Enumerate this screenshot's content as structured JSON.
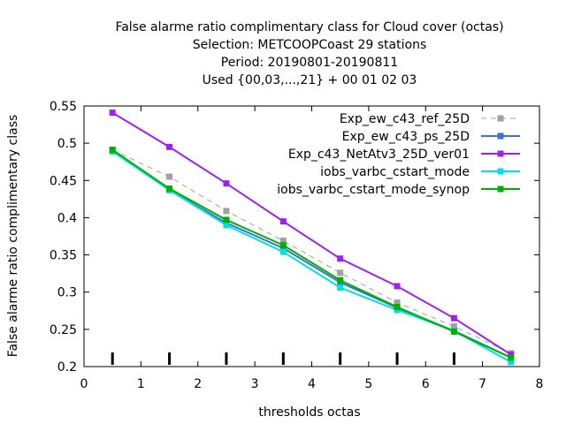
{
  "chart_data": {
    "type": "line",
    "title_lines": [
      "False alarme ratio complimentary class  for Cloud cover (octas)",
      "Selection: METCOOPCoast     29 stations",
      "Period: 20190801-20190811",
      "Used {00,03,...,21} + 00 01 02 03"
    ],
    "xlabel": "thresholds octas",
    "ylabel": "False alarme ratio complimentary class",
    "xlim": [
      0,
      8
    ],
    "ylim": [
      0.2,
      0.55
    ],
    "xticks": [
      "0",
      "1",
      "2",
      "3",
      "4",
      "5",
      "6",
      "7",
      "8"
    ],
    "yticks": [
      "0.2",
      "0.25",
      "0.3",
      "0.35",
      "0.4",
      "0.45",
      "0.5",
      "0.55"
    ],
    "grid": false,
    "legend_position": "top-right",
    "x": [
      0.5,
      1.5,
      2.5,
      3.5,
      4.5,
      5.5,
      6.5,
      7.5
    ],
    "series": [
      {
        "name": "Exp_ew_c43_ref_25D",
        "color": "#a0a0a0",
        "dashed": true,
        "values": [
          0.491,
          0.455,
          0.409,
          0.369,
          0.326,
          0.286,
          0.254,
          0.218
        ]
      },
      {
        "name": "Exp_ew_c43_ps_25D",
        "color": "#3b6fd4",
        "dashed": false,
        "values": [
          0.491,
          0.437,
          0.393,
          0.359,
          0.313,
          0.279,
          0.248,
          0.212
        ]
      },
      {
        "name": "Exp_c43_NetAtv3_25D_ver01",
        "color": "#a020f0",
        "dashed": false,
        "values": [
          0.541,
          0.495,
          0.446,
          0.395,
          0.345,
          0.308,
          0.265,
          0.216
        ]
      },
      {
        "name": "iobs_varbc_cstart_mode",
        "color": "#00e0e0",
        "dashed": false,
        "values": [
          0.489,
          0.437,
          0.39,
          0.354,
          0.306,
          0.276,
          0.248,
          0.206
        ]
      },
      {
        "name": "iobs_varbc_cstart_mode_synop",
        "color": "#00b000",
        "dashed": false,
        "values": [
          0.491,
          0.439,
          0.397,
          0.363,
          0.316,
          0.28,
          0.247,
          0.212
        ]
      }
    ],
    "impulse_marks_x": [
      0.5,
      1.5,
      2.5,
      3.5,
      4.5,
      5.5,
      6.5,
      7.5
    ]
  }
}
